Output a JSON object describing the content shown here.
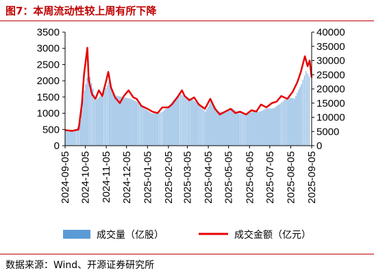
{
  "page": {
    "title": "图7：本周流动性较上周有所下降",
    "source": "数据来源：Wind、开源证券研究所",
    "accent_color": "#C00000"
  },
  "chart_data": {
    "type": "bar+line",
    "title": "图7：本周流动性较上周有所下降",
    "x_ticks": [
      "2024-09-05",
      "2024-10-05",
      "2024-11-05",
      "2024-12-05",
      "2025-01-05",
      "2025-02-05",
      "2025-03-05",
      "2025-04-05",
      "2025-05-05",
      "2025-06-05",
      "2025-07-05",
      "2025-08-05",
      "2025-09-05"
    ],
    "left_axis": {
      "range": [
        0,
        3500
      ],
      "ticks": [
        "0",
        "500",
        "1000",
        "1500",
        "2000",
        "2500",
        "3000",
        "3500"
      ]
    },
    "right_axis": {
      "range": [
        0,
        40000
      ],
      "ticks": [
        "0",
        "5000",
        "10000",
        "15000",
        "20000",
        "25000",
        "30000",
        "35000",
        "40000"
      ]
    },
    "legend": {
      "placement": "bottom"
    },
    "series": [
      {
        "name": "成交量（亿股）",
        "type": "bar",
        "axis": "left",
        "color": "#5B9BD5",
        "points": [
          [
            "2024-09-05",
            500
          ],
          [
            "2024-09-20",
            480
          ],
          [
            "2024-09-27",
            780
          ],
          [
            "2024-10-01",
            1500
          ],
          [
            "2024-10-09",
            2300
          ],
          [
            "2024-10-20",
            1400
          ],
          [
            "2024-10-30",
            1600
          ],
          [
            "2024-11-08",
            1950
          ],
          [
            "2024-11-18",
            1550
          ],
          [
            "2024-11-28",
            1500
          ],
          [
            "2024-12-10",
            1450
          ],
          [
            "2024-12-20",
            1350
          ],
          [
            "2024-12-31",
            1150
          ],
          [
            "2025-01-10",
            1000
          ],
          [
            "2025-01-20",
            1000
          ],
          [
            "2025-01-27",
            1050
          ],
          [
            "2025-02-10",
            1350
          ],
          [
            "2025-02-20",
            1600
          ],
          [
            "2025-02-27",
            1550
          ],
          [
            "2025-03-10",
            1450
          ],
          [
            "2025-03-20",
            1300
          ],
          [
            "2025-03-31",
            1050
          ],
          [
            "2025-04-08",
            1350
          ],
          [
            "2025-04-20",
            1050
          ],
          [
            "2025-04-30",
            1050
          ],
          [
            "2025-05-10",
            1150
          ],
          [
            "2025-05-20",
            1000
          ],
          [
            "2025-05-31",
            1000
          ],
          [
            "2025-06-10",
            1050
          ],
          [
            "2025-06-20",
            1050
          ],
          [
            "2025-06-30",
            1150
          ],
          [
            "2025-07-10",
            1150
          ],
          [
            "2025-07-20",
            1300
          ],
          [
            "2025-07-31",
            1500
          ],
          [
            "2025-08-10",
            1450
          ],
          [
            "2025-08-20",
            1900
          ],
          [
            "2025-08-27",
            2300
          ],
          [
            "2025-09-03",
            2050
          ]
        ]
      },
      {
        "name": "成交金额（亿元）",
        "type": "line",
        "axis": "right",
        "color": "#E60000",
        "points": [
          [
            "2024-09-05",
            5500
          ],
          [
            "2024-09-15",
            5200
          ],
          [
            "2024-09-25",
            5700
          ],
          [
            "2024-09-30",
            15000
          ],
          [
            "2024-10-03",
            25000
          ],
          [
            "2024-10-08",
            34500
          ],
          [
            "2024-10-10",
            23000
          ],
          [
            "2024-10-15",
            18000
          ],
          [
            "2024-10-20",
            16500
          ],
          [
            "2024-10-25",
            19500
          ],
          [
            "2024-10-30",
            17500
          ],
          [
            "2024-11-05",
            23000
          ],
          [
            "2024-11-08",
            26000
          ],
          [
            "2024-11-12",
            20500
          ],
          [
            "2024-11-18",
            17000
          ],
          [
            "2024-11-25",
            15000
          ],
          [
            "2024-12-01",
            17500
          ],
          [
            "2024-12-08",
            19500
          ],
          [
            "2024-12-15",
            17000
          ],
          [
            "2024-12-20",
            16500
          ],
          [
            "2024-12-27",
            14000
          ],
          [
            "2025-01-05",
            13000
          ],
          [
            "2025-01-12",
            12000
          ],
          [
            "2025-01-20",
            11500
          ],
          [
            "2025-01-27",
            13500
          ],
          [
            "2025-02-05",
            13500
          ],
          [
            "2025-02-10",
            14500
          ],
          [
            "2025-02-18",
            17000
          ],
          [
            "2025-02-25",
            19500
          ],
          [
            "2025-03-01",
            17500
          ],
          [
            "2025-03-08",
            16000
          ],
          [
            "2025-03-15",
            17000
          ],
          [
            "2025-03-22",
            14500
          ],
          [
            "2025-03-31",
            13000
          ],
          [
            "2025-04-08",
            16500
          ],
          [
            "2025-04-15",
            13000
          ],
          [
            "2025-04-22",
            11000
          ],
          [
            "2025-04-30",
            12000
          ],
          [
            "2025-05-08",
            13000
          ],
          [
            "2025-05-15",
            11500
          ],
          [
            "2025-05-22",
            12000
          ],
          [
            "2025-05-31",
            11000
          ],
          [
            "2025-06-08",
            12500
          ],
          [
            "2025-06-15",
            12000
          ],
          [
            "2025-06-22",
            14500
          ],
          [
            "2025-06-30",
            13500
          ],
          [
            "2025-07-08",
            15000
          ],
          [
            "2025-07-15",
            15500
          ],
          [
            "2025-07-22",
            17500
          ],
          [
            "2025-07-31",
            16500
          ],
          [
            "2025-08-08",
            19000
          ],
          [
            "2025-08-15",
            22500
          ],
          [
            "2025-08-20",
            26000
          ],
          [
            "2025-08-26",
            31500
          ],
          [
            "2025-08-30",
            28000
          ],
          [
            "2025-09-02",
            30000
          ],
          [
            "2025-09-05",
            24000
          ]
        ]
      }
    ]
  }
}
